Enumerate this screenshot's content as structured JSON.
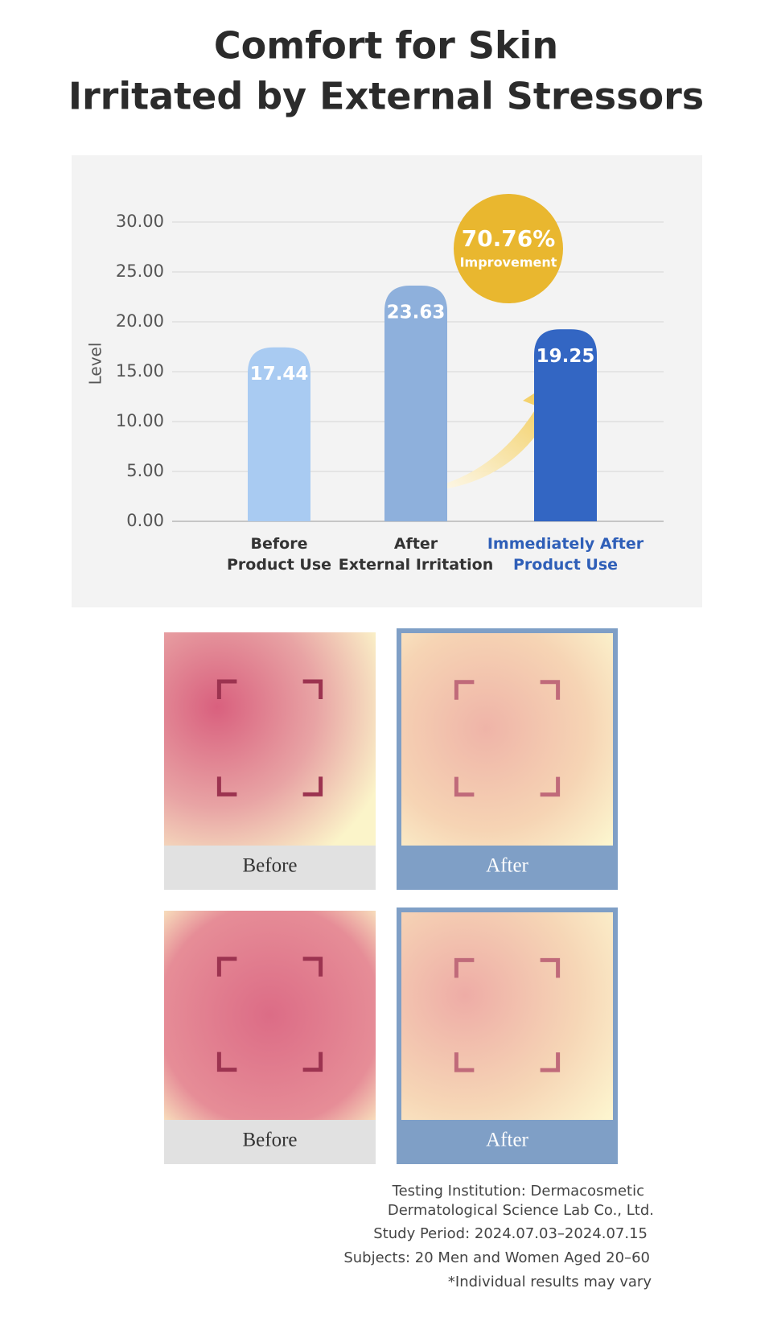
{
  "header": {
    "title": [
      "Comfort for Skin",
      "Irritated by External Stressors"
    ]
  },
  "chart_data": {
    "type": "bar",
    "y_label": "Level",
    "categories": [
      "Before\nProduct Use",
      "After\nExternal Irritation",
      "Immediately After\nProduct Use"
    ],
    "values": [
      17.44,
      23.63,
      19.25
    ],
    "colors": [
      "#a9cbf2",
      "#8eb0dc",
      "#3366c3"
    ],
    "category_colors": [
      "#333333",
      "#333333",
      "#2f5fb8"
    ],
    "ylim": [
      0,
      30
    ],
    "yticks": [
      {
        "value": 0,
        "label": "0.00"
      },
      {
        "value": 5,
        "label": "5.00"
      },
      {
        "value": 10,
        "label": "10.00"
      },
      {
        "value": 15,
        "label": "15.00"
      },
      {
        "value": 20,
        "label": "20.00"
      },
      {
        "value": 25,
        "label": "25.00"
      },
      {
        "value": 30,
        "label": "30.00"
      }
    ],
    "grid": true,
    "annotation": {
      "value": 70.76,
      "value_label": "70.76%",
      "text": "Improvement",
      "color": "#e9b72f"
    }
  },
  "photos": [
    {
      "label": "Before"
    },
    {
      "label": "After"
    },
    {
      "label": "Before"
    },
    {
      "label": "After"
    }
  ],
  "footnote": [
    "Testing Institution: Dermacosmetic",
    "Dermatological Science Lab Co., Ltd.",
    "Study Period: 2024.07.03–2024.07.15",
    "Subjects: 20 Men and Women Aged 20–60",
    "*Individual results may vary"
  ]
}
